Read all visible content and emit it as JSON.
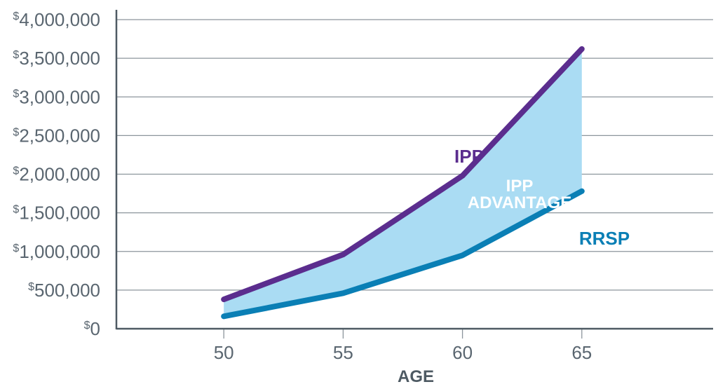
{
  "chart_data": {
    "type": "line",
    "xlabel": "AGE",
    "ylabel": "",
    "x": [
      50,
      55,
      60,
      65
    ],
    "xlim": [
      45.5,
      70.5
    ],
    "ylim": [
      0,
      4000000
    ],
    "grid": true,
    "x_ticks": [
      "50",
      "55",
      "60",
      "65"
    ],
    "y_ticks": [
      {
        "value": 0,
        "currency": "$",
        "text": "0"
      },
      {
        "value": 500000,
        "currency": "$",
        "text": "500,000"
      },
      {
        "value": 1000000,
        "currency": "$",
        "text": "1,000,000"
      },
      {
        "value": 1500000,
        "currency": "$",
        "text": "1,500,000"
      },
      {
        "value": 2000000,
        "currency": "$",
        "text": "2,000,000"
      },
      {
        "value": 2500000,
        "currency": "$",
        "text": "2,500,000"
      },
      {
        "value": 3000000,
        "currency": "$",
        "text": "3,000,000"
      },
      {
        "value": 3500000,
        "currency": "$",
        "text": "3,500,000"
      },
      {
        "value": 4000000,
        "currency": "$",
        "text": "4,000,000"
      }
    ],
    "series": [
      {
        "name": "IPP",
        "color": "#5b2d8e",
        "values": [
          380000,
          960000,
          1980000,
          3620000
        ]
      },
      {
        "name": "RRSP",
        "color": "#0a7fb5",
        "values": [
          160000,
          460000,
          950000,
          1780000
        ]
      }
    ],
    "fill_between": {
      "label_line1": "IPP",
      "label_line2": "ADVANTAGE",
      "color": "#aadcf3"
    },
    "colors": {
      "axis": "#4e5a63",
      "grid": "#8c959c",
      "tick_text": "#5a6670"
    }
  }
}
